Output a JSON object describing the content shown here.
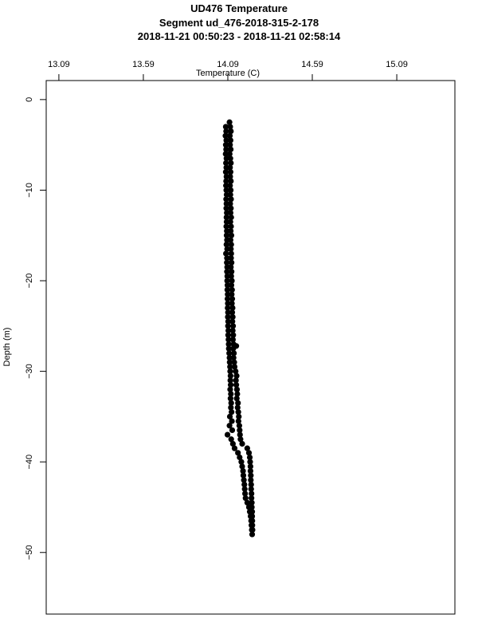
{
  "chart_data": {
    "type": "scatter",
    "title": "UD476 Temperature",
    "subtitle": "Segment ud_476-2018-315-2-178",
    "time_range": "2018-11-21 00:50:23 - 2018-11-21 02:58:14",
    "xlabel": "Temperature (C)",
    "ylabel": "Depth (m)",
    "x_axis_position": "top",
    "xlim": [
      13.015,
      15.434
    ],
    "ylim": [
      -56.8,
      2.1
    ],
    "x_ticks": [
      "13.09",
      "13.59",
      "14.09",
      "14.59",
      "15.09"
    ],
    "y_ticks": [
      "0",
      "-10",
      "-20",
      "-30",
      "-40",
      "-50"
    ],
    "grid": false,
    "marker_color": "#000000",
    "points": [
      [
        -2.5,
        14.1
      ],
      [
        -3,
        14.078
      ],
      [
        -3,
        14.104
      ],
      [
        -3.5,
        14.08
      ],
      [
        -3.5,
        14.108
      ],
      [
        -4,
        14.076
      ],
      [
        -4,
        14.102
      ],
      [
        -4.5,
        14.081
      ],
      [
        -4.5,
        14.106
      ],
      [
        -5,
        14.078
      ],
      [
        -5,
        14.103
      ],
      [
        -5.5,
        14.08
      ],
      [
        -5.5,
        14.107
      ],
      [
        -6,
        14.077
      ],
      [
        -6,
        14.101
      ],
      [
        -6.5,
        14.082
      ],
      [
        -6.5,
        14.105
      ],
      [
        -7,
        14.079
      ],
      [
        -7,
        14.108
      ],
      [
        -7.5,
        14.081
      ],
      [
        -7.5,
        14.103
      ],
      [
        -8,
        14.078
      ],
      [
        -8,
        14.106
      ],
      [
        -8.5,
        14.082
      ],
      [
        -8.5,
        14.104
      ],
      [
        -9,
        14.08
      ],
      [
        -9,
        14.108
      ],
      [
        -9.5,
        14.079
      ],
      [
        -9.5,
        14.103
      ],
      [
        -10,
        14.081
      ],
      [
        -10,
        14.107
      ],
      [
        -10.5,
        14.083
      ],
      [
        -10.5,
        14.105
      ],
      [
        -11,
        14.08
      ],
      [
        -11,
        14.109
      ],
      [
        -11.5,
        14.082
      ],
      [
        -11.5,
        14.104
      ],
      [
        -12,
        14.081
      ],
      [
        -12,
        14.108
      ],
      [
        -12.5,
        14.084
      ],
      [
        -12.5,
        14.106
      ],
      [
        -13,
        14.082
      ],
      [
        -13,
        14.11
      ],
      [
        -13.5,
        14.083
      ],
      [
        -13.5,
        14.105
      ],
      [
        -14,
        14.081
      ],
      [
        -14,
        14.109
      ],
      [
        -14.5,
        14.084
      ],
      [
        -14.5,
        14.107
      ],
      [
        -15,
        14.083
      ],
      [
        -15,
        14.111
      ],
      [
        -15.5,
        14.085
      ],
      [
        -15.5,
        14.106
      ],
      [
        -16,
        14.082
      ],
      [
        -16,
        14.11
      ],
      [
        -16.5,
        14.086
      ],
      [
        -16.5,
        14.108
      ],
      [
        -17,
        14.079
      ],
      [
        -17,
        14.11
      ],
      [
        -17.5,
        14.085
      ],
      [
        -17.5,
        14.109
      ],
      [
        -18,
        14.084
      ],
      [
        -18,
        14.112
      ],
      [
        -18.5,
        14.086
      ],
      [
        -18.5,
        14.108
      ],
      [
        -19,
        14.085
      ],
      [
        -19,
        14.112
      ],
      [
        -19.5,
        14.087
      ],
      [
        -19.5,
        14.11
      ],
      [
        -20,
        14.086
      ],
      [
        -20,
        14.114
      ],
      [
        -20.5,
        14.088
      ],
      [
        -20.5,
        14.111
      ],
      [
        -21,
        14.087
      ],
      [
        -21,
        14.115
      ],
      [
        -21.5,
        14.089
      ],
      [
        -21.5,
        14.113
      ],
      [
        -22,
        14.088
      ],
      [
        -22,
        14.116
      ],
      [
        -22.5,
        14.09
      ],
      [
        -22.5,
        14.114
      ],
      [
        -23,
        14.089
      ],
      [
        -23,
        14.118
      ],
      [
        -23.5,
        14.091
      ],
      [
        -23.5,
        14.116
      ],
      [
        -24,
        14.09
      ],
      [
        -24,
        14.119
      ],
      [
        -24.5,
        14.092
      ],
      [
        -24.5,
        14.117
      ],
      [
        -25,
        14.091
      ],
      [
        -25,
        14.121
      ],
      [
        -25.5,
        14.093
      ],
      [
        -25.5,
        14.119
      ],
      [
        -26,
        14.092
      ],
      [
        -26,
        14.122
      ],
      [
        -26.5,
        14.094
      ],
      [
        -26.5,
        14.12
      ],
      [
        -27,
        14.095
      ],
      [
        -27,
        14.124
      ],
      [
        -27.2,
        14.14
      ],
      [
        -27.5,
        14.096
      ],
      [
        -27.5,
        14.122
      ],
      [
        -28,
        14.098
      ],
      [
        -28,
        14.126
      ],
      [
        -28.5,
        14.1
      ],
      [
        -28.5,
        14.124
      ],
      [
        -29,
        14.101
      ],
      [
        -29,
        14.128
      ],
      [
        -29.5,
        14.103
      ],
      [
        -29.5,
        14.13
      ],
      [
        -30,
        14.104
      ],
      [
        -30,
        14.136
      ],
      [
        -30.5,
        14.106
      ],
      [
        -30.5,
        14.142
      ],
      [
        -31,
        14.105
      ],
      [
        -31,
        14.138
      ],
      [
        -31.5,
        14.107
      ],
      [
        -31.5,
        14.14
      ],
      [
        -32,
        14.104
      ],
      [
        -32,
        14.144
      ],
      [
        -32.5,
        14.108
      ],
      [
        -32.5,
        14.146
      ],
      [
        -33,
        14.106
      ],
      [
        -33,
        14.143
      ],
      [
        -33.5,
        14.11
      ],
      [
        -33.5,
        14.15
      ],
      [
        -34,
        14.108
      ],
      [
        -34,
        14.148
      ],
      [
        -34.5,
        14.112
      ],
      [
        -34.5,
        14.152
      ],
      [
        -35,
        14.102
      ],
      [
        -35,
        14.155
      ],
      [
        -35.5,
        14.114
      ],
      [
        -35.5,
        14.153
      ],
      [
        -36,
        14.1
      ],
      [
        -36,
        14.158
      ],
      [
        -36.5,
        14.116
      ],
      [
        -36.5,
        14.16
      ],
      [
        -37,
        14.088
      ],
      [
        -37,
        14.162
      ],
      [
        -37.5,
        14.11
      ],
      [
        -37.5,
        14.165
      ],
      [
        -38,
        14.12
      ],
      [
        -38,
        14.175
      ],
      [
        -38.5,
        14.13
      ],
      [
        -38.5,
        14.205
      ],
      [
        -39,
        14.15
      ],
      [
        -39,
        14.215
      ],
      [
        -39.5,
        14.16
      ],
      [
        -39.5,
        14.22
      ],
      [
        -40,
        14.17
      ],
      [
        -40,
        14.222
      ],
      [
        -40.5,
        14.175
      ],
      [
        -40.5,
        14.224
      ],
      [
        -41,
        14.18
      ],
      [
        -41,
        14.224
      ],
      [
        -41.5,
        14.182
      ],
      [
        -41.5,
        14.226
      ],
      [
        -42,
        14.185
      ],
      [
        -42,
        14.226
      ],
      [
        -42.5,
        14.188
      ],
      [
        -42.5,
        14.228
      ],
      [
        -43,
        14.19
      ],
      [
        -43,
        14.228
      ],
      [
        -43.5,
        14.192
      ],
      [
        -43.5,
        14.23
      ],
      [
        -44,
        14.195
      ],
      [
        -44,
        14.23
      ],
      [
        -44.5,
        14.205
      ],
      [
        -44.5,
        14.232
      ],
      [
        -45,
        14.215
      ],
      [
        -45,
        14.232
      ],
      [
        -45.5,
        14.22
      ],
      [
        -45.5,
        14.234
      ],
      [
        -46,
        14.225
      ],
      [
        -46,
        14.234
      ],
      [
        -46.5,
        14.228
      ],
      [
        -46.5,
        14.235
      ],
      [
        -47,
        14.23
      ],
      [
        -47,
        14.235
      ],
      [
        -47.5,
        14.232
      ],
      [
        -47.5,
        14.236
      ],
      [
        -48,
        14.234
      ]
    ]
  }
}
